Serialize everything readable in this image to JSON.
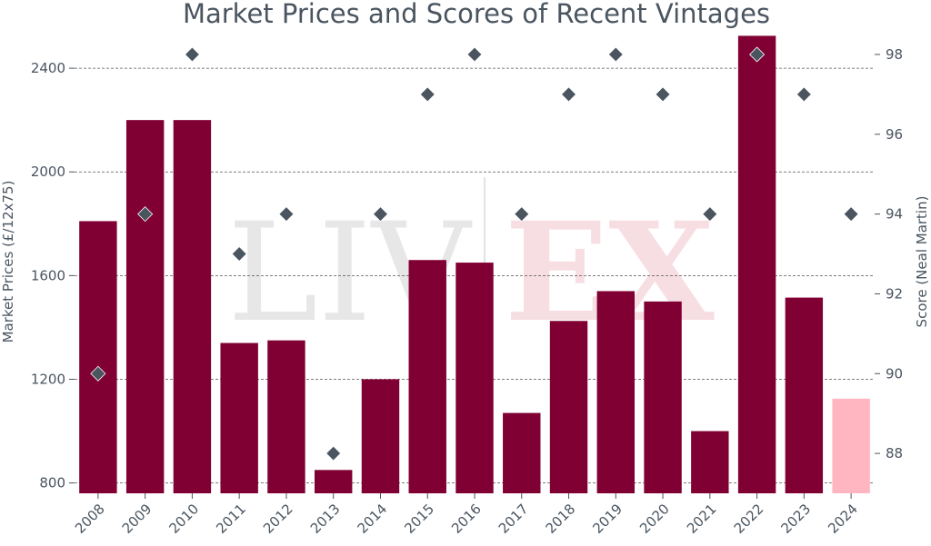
{
  "chart_data": {
    "type": "bar",
    "title": "Market Prices and Scores of Recent Vintages",
    "categories": [
      "2008",
      "2009",
      "2010",
      "2011",
      "2012",
      "2013",
      "2014",
      "2015",
      "2016",
      "2017",
      "2018",
      "2019",
      "2020",
      "2021",
      "2022",
      "2023",
      "2024"
    ],
    "series": [
      {
        "name": "Market Prices",
        "type": "bar",
        "axis": "left",
        "values": [
          1810,
          2200,
          2200,
          1340,
          1350,
          850,
          1200,
          1660,
          1650,
          1070,
          1425,
          1540,
          1500,
          1000,
          2525,
          1515,
          1125
        ],
        "colors": [
          "#800033",
          "#800033",
          "#800033",
          "#800033",
          "#800033",
          "#800033",
          "#800033",
          "#800033",
          "#800033",
          "#800033",
          "#800033",
          "#800033",
          "#800033",
          "#800033",
          "#800033",
          "#800033",
          "#ffb6c1"
        ]
      },
      {
        "name": "Score (Neal Martin)",
        "type": "scatter",
        "axis": "right",
        "marker": "diamond",
        "values": [
          90,
          94,
          98,
          93,
          94,
          88,
          94,
          97,
          98,
          94,
          97,
          98,
          97,
          94,
          98,
          97,
          94
        ],
        "color": "#4a5560"
      }
    ],
    "ylabel": "Market Prices (£/12x75)",
    "ylabel_right": "Score (Neal Martin)",
    "ylim": [
      760,
      2530
    ],
    "ylim_right": [
      87,
      98.5
    ],
    "yticks": [
      800,
      1200,
      1600,
      2000,
      2400
    ],
    "yticks_right": [
      88,
      90,
      92,
      94,
      96,
      98
    ],
    "grid": true,
    "legend": "none",
    "watermark": "LIV|EX"
  }
}
